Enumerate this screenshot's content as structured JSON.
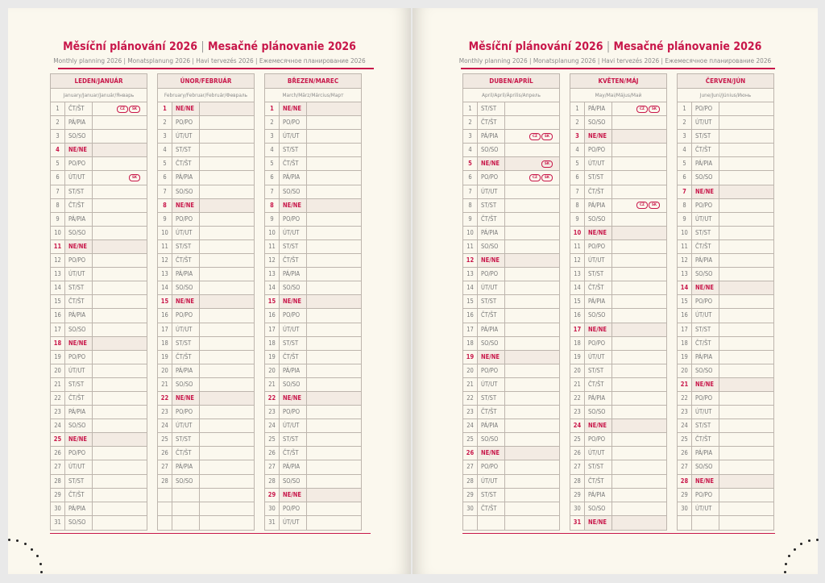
{
  "header": {
    "title_cz": "Měsíční plánování 2026",
    "title_sk": "Mesačné plánovanie 2026",
    "subtitle": "Monthly planning 2026 | Monatsplanung 2026 | Havi tervezés 2026 | Ежемесячное планирование 2026"
  },
  "colors": {
    "accent": "#c8174a",
    "page": "#fbf8ee",
    "sunday_fill": "#f3ebe3",
    "grid": "#bdb5ad"
  },
  "badges": {
    "CZ": "CZ",
    "SK": "SK"
  },
  "months": [
    {
      "name": "LEDEN/JANUÁR",
      "sub": "January/Januar/Január/Январь",
      "days": [
        [
          "1",
          "ČT/ŠT",
          "CZ",
          "SK"
        ],
        [
          "2",
          "PÁ/PIA"
        ],
        [
          "3",
          "SO/SO"
        ],
        [
          "4",
          "NE/NE"
        ],
        [
          "5",
          "PO/PO"
        ],
        [
          "6",
          "ÚT/UT",
          "SK"
        ],
        [
          "7",
          "ST/ST"
        ],
        [
          "8",
          "ČT/ŠT"
        ],
        [
          "9",
          "PÁ/PIA"
        ],
        [
          "10",
          "SO/SO"
        ],
        [
          "11",
          "NE/NE"
        ],
        [
          "12",
          "PO/PO"
        ],
        [
          "13",
          "ÚT/UT"
        ],
        [
          "14",
          "ST/ST"
        ],
        [
          "15",
          "ČT/ŠT"
        ],
        [
          "16",
          "PÁ/PIA"
        ],
        [
          "17",
          "SO/SO"
        ],
        [
          "18",
          "NE/NE"
        ],
        [
          "19",
          "PO/PO"
        ],
        [
          "20",
          "ÚT/UT"
        ],
        [
          "21",
          "ST/ST"
        ],
        [
          "22",
          "ČT/ŠT"
        ],
        [
          "23",
          "PÁ/PIA"
        ],
        [
          "24",
          "SO/SO"
        ],
        [
          "25",
          "NE/NE"
        ],
        [
          "26",
          "PO/PO"
        ],
        [
          "27",
          "ÚT/UT"
        ],
        [
          "28",
          "ST/ST"
        ],
        [
          "29",
          "ČT/ŠT"
        ],
        [
          "30",
          "PÁ/PIA"
        ],
        [
          "31",
          "SO/SO"
        ]
      ]
    },
    {
      "name": "ÚNOR/FEBRUÁR",
      "sub": "February/Februar/Február/Февраль",
      "days": [
        [
          "1",
          "NE/NE"
        ],
        [
          "2",
          "PO/PO"
        ],
        [
          "3",
          "ÚT/UT"
        ],
        [
          "4",
          "ST/ST"
        ],
        [
          "5",
          "ČT/ŠT"
        ],
        [
          "6",
          "PÁ/PIA"
        ],
        [
          "7",
          "SO/SO"
        ],
        [
          "8",
          "NE/NE"
        ],
        [
          "9",
          "PO/PO"
        ],
        [
          "10",
          "ÚT/UT"
        ],
        [
          "11",
          "ST/ST"
        ],
        [
          "12",
          "ČT/ŠT"
        ],
        [
          "13",
          "PÁ/PIA"
        ],
        [
          "14",
          "SO/SO"
        ],
        [
          "15",
          "NE/NE"
        ],
        [
          "16",
          "PO/PO"
        ],
        [
          "17",
          "ÚT/UT"
        ],
        [
          "18",
          "ST/ST"
        ],
        [
          "19",
          "ČT/ŠT"
        ],
        [
          "20",
          "PÁ/PIA"
        ],
        [
          "21",
          "SO/SO"
        ],
        [
          "22",
          "NE/NE"
        ],
        [
          "23",
          "PO/PO"
        ],
        [
          "24",
          "ÚT/UT"
        ],
        [
          "25",
          "ST/ST"
        ],
        [
          "26",
          "ČT/ŠT"
        ],
        [
          "27",
          "PÁ/PIA"
        ],
        [
          "28",
          "SO/SO"
        ]
      ]
    },
    {
      "name": "BŘEZEN/MAREC",
      "sub": "March/März/Március/Март",
      "days": [
        [
          "1",
          "NE/NE"
        ],
        [
          "2",
          "PO/PO"
        ],
        [
          "3",
          "ÚT/UT"
        ],
        [
          "4",
          "ST/ST"
        ],
        [
          "5",
          "ČT/ŠT"
        ],
        [
          "6",
          "PÁ/PIA"
        ],
        [
          "7",
          "SO/SO"
        ],
        [
          "8",
          "NE/NE"
        ],
        [
          "9",
          "PO/PO"
        ],
        [
          "10",
          "ÚT/UT"
        ],
        [
          "11",
          "ST/ST"
        ],
        [
          "12",
          "ČT/ŠT"
        ],
        [
          "13",
          "PÁ/PIA"
        ],
        [
          "14",
          "SO/SO"
        ],
        [
          "15",
          "NE/NE"
        ],
        [
          "16",
          "PO/PO"
        ],
        [
          "17",
          "ÚT/UT"
        ],
        [
          "18",
          "ST/ST"
        ],
        [
          "19",
          "ČT/ŠT"
        ],
        [
          "20",
          "PÁ/PIA"
        ],
        [
          "21",
          "SO/SO"
        ],
        [
          "22",
          "NE/NE"
        ],
        [
          "23",
          "PO/PO"
        ],
        [
          "24",
          "ÚT/UT"
        ],
        [
          "25",
          "ST/ST"
        ],
        [
          "26",
          "ČT/ŠT"
        ],
        [
          "27",
          "PÁ/PIA"
        ],
        [
          "28",
          "SO/SO"
        ],
        [
          "29",
          "NE/NE"
        ],
        [
          "30",
          "PO/PO"
        ],
        [
          "31",
          "ÚT/UT"
        ]
      ]
    },
    {
      "name": "DUBEN/APRÍL",
      "sub": "April/April/Április/Апрель",
      "days": [
        [
          "1",
          "ST/ST"
        ],
        [
          "2",
          "ČT/ŠT"
        ],
        [
          "3",
          "PÁ/PIA",
          "CZ",
          "SK"
        ],
        [
          "4",
          "SO/SO"
        ],
        [
          "5",
          "NE/NE",
          "SK"
        ],
        [
          "6",
          "PO/PO",
          "CZ",
          "SK"
        ],
        [
          "7",
          "ÚT/UT"
        ],
        [
          "8",
          "ST/ST"
        ],
        [
          "9",
          "ČT/ŠT"
        ],
        [
          "10",
          "PÁ/PIA"
        ],
        [
          "11",
          "SO/SO"
        ],
        [
          "12",
          "NE/NE"
        ],
        [
          "13",
          "PO/PO"
        ],
        [
          "14",
          "ÚT/UT"
        ],
        [
          "15",
          "ST/ST"
        ],
        [
          "16",
          "ČT/ŠT"
        ],
        [
          "17",
          "PÁ/PIA"
        ],
        [
          "18",
          "SO/SO"
        ],
        [
          "19",
          "NE/NE"
        ],
        [
          "20",
          "PO/PO"
        ],
        [
          "21",
          "ÚT/UT"
        ],
        [
          "22",
          "ST/ST"
        ],
        [
          "23",
          "ČT/ŠT"
        ],
        [
          "24",
          "PÁ/PIA"
        ],
        [
          "25",
          "SO/SO"
        ],
        [
          "26",
          "NE/NE"
        ],
        [
          "27",
          "PO/PO"
        ],
        [
          "28",
          "ÚT/UT"
        ],
        [
          "29",
          "ST/ST"
        ],
        [
          "30",
          "ČT/ŠT"
        ]
      ]
    },
    {
      "name": "KVĚTEN/MÁJ",
      "sub": "May/Mai/Május/Май",
      "days": [
        [
          "1",
          "PÁ/PIA",
          "CZ",
          "SK"
        ],
        [
          "2",
          "SO/SO"
        ],
        [
          "3",
          "NE/NE"
        ],
        [
          "4",
          "PO/PO"
        ],
        [
          "5",
          "ÚT/UT"
        ],
        [
          "6",
          "ST/ST"
        ],
        [
          "7",
          "ČT/ŠT"
        ],
        [
          "8",
          "PÁ/PIA",
          "CZ",
          "SK"
        ],
        [
          "9",
          "SO/SO"
        ],
        [
          "10",
          "NE/NE"
        ],
        [
          "11",
          "PO/PO"
        ],
        [
          "12",
          "ÚT/UT"
        ],
        [
          "13",
          "ST/ST"
        ],
        [
          "14",
          "ČT/ŠT"
        ],
        [
          "15",
          "PÁ/PIA"
        ],
        [
          "16",
          "SO/SO"
        ],
        [
          "17",
          "NE/NE"
        ],
        [
          "18",
          "PO/PO"
        ],
        [
          "19",
          "ÚT/UT"
        ],
        [
          "20",
          "ST/ST"
        ],
        [
          "21",
          "ČT/ŠT"
        ],
        [
          "22",
          "PÁ/PIA"
        ],
        [
          "23",
          "SO/SO"
        ],
        [
          "24",
          "NE/NE"
        ],
        [
          "25",
          "PO/PO"
        ],
        [
          "26",
          "ÚT/UT"
        ],
        [
          "27",
          "ST/ST"
        ],
        [
          "28",
          "ČT/ŠT"
        ],
        [
          "29",
          "PÁ/PIA"
        ],
        [
          "30",
          "SO/SO"
        ],
        [
          "31",
          "NE/NE"
        ]
      ]
    },
    {
      "name": "ČERVEN/JÚN",
      "sub": "June/Juni/Június/Июнь",
      "days": [
        [
          "1",
          "PO/PO"
        ],
        [
          "2",
          "ÚT/UT"
        ],
        [
          "3",
          "ST/ST"
        ],
        [
          "4",
          "ČT/ŠT"
        ],
        [
          "5",
          "PÁ/PIA"
        ],
        [
          "6",
          "SO/SO"
        ],
        [
          "7",
          "NE/NE"
        ],
        [
          "8",
          "PO/PO"
        ],
        [
          "9",
          "ÚT/UT"
        ],
        [
          "10",
          "ST/ST"
        ],
        [
          "11",
          "ČT/ŠT"
        ],
        [
          "12",
          "PÁ/PIA"
        ],
        [
          "13",
          "SO/SO"
        ],
        [
          "14",
          "NE/NE"
        ],
        [
          "15",
          "PO/PO"
        ],
        [
          "16",
          "ÚT/UT"
        ],
        [
          "17",
          "ST/ST"
        ],
        [
          "18",
          "ČT/ŠT"
        ],
        [
          "19",
          "PÁ/PIA"
        ],
        [
          "20",
          "SO/SO"
        ],
        [
          "21",
          "NE/NE"
        ],
        [
          "22",
          "PO/PO"
        ],
        [
          "23",
          "ÚT/UT"
        ],
        [
          "24",
          "ST/ST"
        ],
        [
          "25",
          "ČT/ŠT"
        ],
        [
          "26",
          "PÁ/PIA"
        ],
        [
          "27",
          "SO/SO"
        ],
        [
          "28",
          "NE/NE"
        ],
        [
          "29",
          "PO/PO"
        ],
        [
          "30",
          "ÚT/UT"
        ]
      ]
    }
  ]
}
